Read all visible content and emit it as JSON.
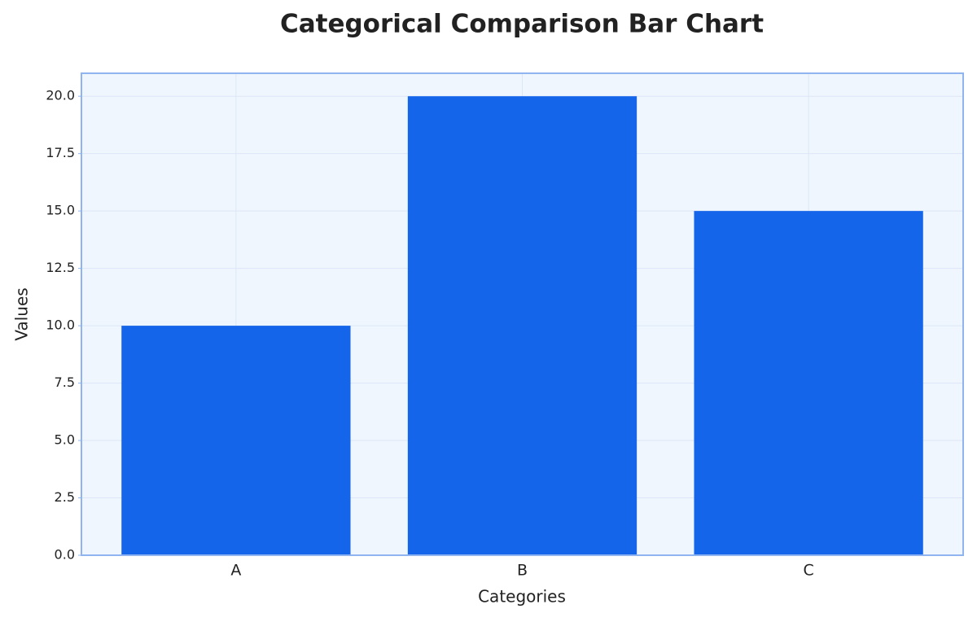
{
  "chart_data": {
    "type": "bar",
    "title": "Categorical Comparison Bar Chart",
    "x_label": "Categories",
    "y_label": "Values",
    "categories": [
      "A",
      "B",
      "C"
    ],
    "values": [
      10,
      20,
      15
    ],
    "color": "#1565ea",
    "ylim": [
      0,
      21
    ],
    "yticks": [
      {
        "value": 0,
        "label": "0.0"
      },
      2.5,
      {
        "value": 5,
        "label": "5.0"
      },
      7.5,
      {
        "value": 10,
        "label": "10.0"
      },
      12.5,
      {
        "value": 15,
        "label": "15.0"
      },
      17.5,
      {
        "value": 20,
        "label": "20.0"
      }
    ],
    "grid": true
  }
}
